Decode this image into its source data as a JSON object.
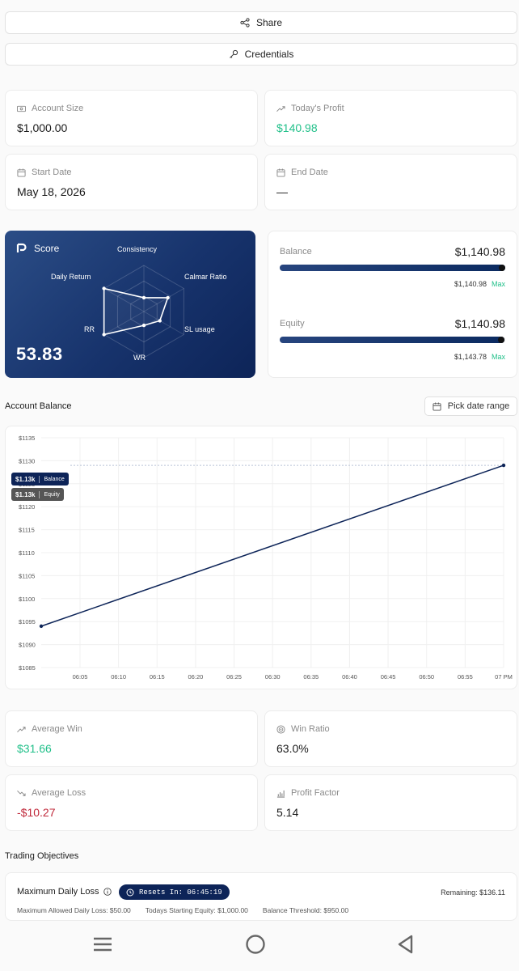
{
  "actions": {
    "share_label": "Share",
    "credentials_label": "Credentials"
  },
  "stats": {
    "account_size": {
      "label": "Account Size",
      "value": "$1,000.00"
    },
    "todays_profit": {
      "label": "Today's Profit",
      "value": "$140.98"
    },
    "start_date": {
      "label": "Start Date",
      "value": "May 18, 2026"
    },
    "end_date": {
      "label": "End Date",
      "value": "—"
    }
  },
  "score": {
    "title": "Score",
    "value": "53.83",
    "axes": [
      "Consistency",
      "Calmar Ratio",
      "SL usage",
      "WR",
      "RR",
      "Daily Return"
    ],
    "levels": [
      0.3,
      0.6,
      0.4,
      0.3,
      1.0,
      1.0
    ]
  },
  "balance": {
    "label": "Balance",
    "value": "$1,140.98",
    "sub_value": "$1,140.98",
    "max_label": "Max",
    "fill": 1.0
  },
  "equity": {
    "label": "Equity",
    "value": "$1,140.98",
    "sub_value": "$1,143.78",
    "max_label": "Max",
    "fill": 0.997
  },
  "account_balance": {
    "title": "Account Balance",
    "date_range_label": "Pick date range"
  },
  "chart_data": {
    "type": "line",
    "x": [
      "06:00",
      "07 PM"
    ],
    "series": [
      {
        "name": "Balance",
        "values": [
          1094,
          1129
        ]
      }
    ],
    "x_tick_labels": [
      "06:05",
      "06:10",
      "06:15",
      "06:20",
      "06:25",
      "06:30",
      "06:35",
      "06:40",
      "06:45",
      "06:50",
      "06:55",
      "07 PM"
    ],
    "y_tick_labels": [
      "$1135",
      "$1130",
      "$1125",
      "$1120",
      "$1115",
      "$1110",
      "$1105",
      "$1100",
      "$1095",
      "$1090",
      "$1085"
    ],
    "ylim": [
      1085,
      1135
    ],
    "grid": true,
    "markers": [
      {
        "value": "$1.13k",
        "name": "Balance",
        "color": "#0d2458"
      },
      {
        "value": "$1.13k",
        "name": "Equity",
        "color": "#555555"
      }
    ],
    "line_color": "#0d2458"
  },
  "metrics": {
    "average_win": {
      "label": "Average Win",
      "value": "$31.66"
    },
    "win_ratio": {
      "label": "Win Ratio",
      "value": "63.0%"
    },
    "average_loss": {
      "label": "Average Loss",
      "value": "-$10.27"
    },
    "profit_factor": {
      "label": "Profit Factor",
      "value": "5.14"
    }
  },
  "objectives": {
    "title": "Trading Objectives",
    "daily_loss": {
      "title": "Maximum Daily Loss",
      "resets": "Resets In: 06:45:19",
      "remaining": "Remaining: $136.11",
      "max_allowed": "Maximum Allowed Daily Loss: $50.00",
      "starting_equity": "Todays Starting Equity: $1,000.00",
      "threshold": "Balance Threshold: $950.00"
    }
  },
  "colors": {
    "accent": "#0d2458",
    "positive": "#22c08a",
    "negative": "#c0283a"
  }
}
